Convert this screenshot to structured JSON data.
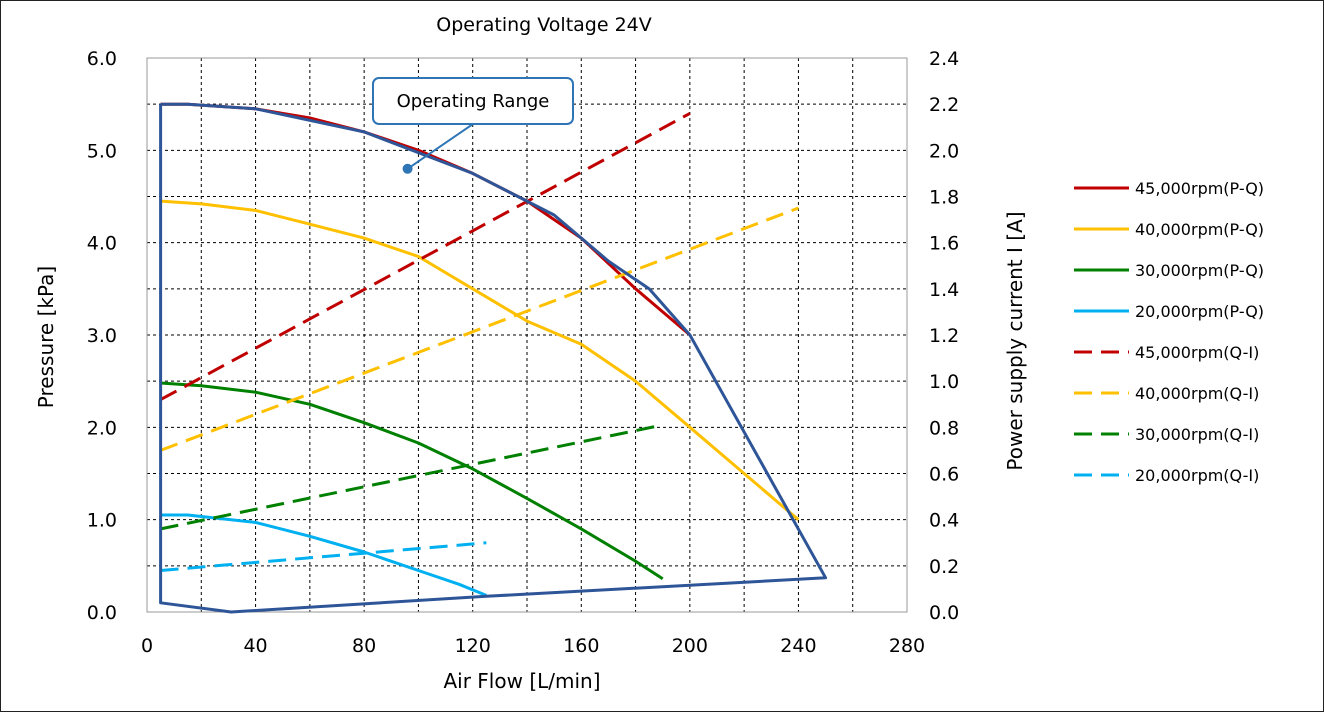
{
  "chart_data": {
    "type": "line",
    "title": "Operating Voltage 24V",
    "xlabel": "Air Flow [L/min]",
    "ylabel": "Pressure  [kPa]",
    "y2label": "Power supply current I [A]",
    "xlim": [
      0,
      280
    ],
    "ylim": [
      0,
      6
    ],
    "y2lim": [
      0,
      2.4
    ],
    "xticks": [
      0,
      40,
      80,
      120,
      160,
      200,
      240,
      280
    ],
    "yticks": [
      0,
      1,
      2,
      3,
      4,
      5,
      6
    ],
    "y2ticks": [
      0,
      0.2,
      0.4,
      0.6,
      0.8,
      1.0,
      1.2,
      1.4,
      1.6,
      1.8,
      2.0,
      2.2,
      2.4
    ],
    "xtick_labels": [
      "0",
      "40",
      "80",
      "120",
      "160",
      "200",
      "240",
      "280"
    ],
    "ytick_labels": [
      "0.0",
      "1.0",
      "2.0",
      "3.0",
      "4.0",
      "5.0",
      "6.0"
    ],
    "y2tick_labels": [
      "0.0",
      "0.2",
      "0.4",
      "0.6",
      "0.8",
      "1.0",
      "1.2",
      "1.4",
      "1.6",
      "1.8",
      "2.0",
      "2.2",
      "2.4"
    ],
    "grid": true,
    "legend_position": "right",
    "annotation": {
      "text": "Operating Range",
      "point": [
        96,
        4.8
      ]
    },
    "boundary": {
      "color": "#2E5597",
      "points": [
        [
          5,
          5.5
        ],
        [
          5,
          0.1
        ],
        [
          31,
          0.0
        ],
        [
          125,
          0.17
        ],
        [
          250,
          0.37
        ],
        [
          200,
          3.0
        ],
        [
          185,
          3.5
        ],
        [
          170,
          3.8
        ],
        [
          150,
          4.3
        ],
        [
          120,
          4.75
        ],
        [
          80,
          5.2
        ],
        [
          40,
          5.45
        ],
        [
          15,
          5.5
        ],
        [
          5,
          5.5
        ]
      ]
    },
    "series": [
      {
        "name": "45,000rpm(P-Q)",
        "color": "#C00000",
        "dash": false,
        "axis": "left",
        "x": [
          5,
          15,
          40,
          60,
          80,
          100,
          120,
          140,
          160,
          180,
          200
        ],
        "y": [
          5.5,
          5.5,
          5.45,
          5.35,
          5.2,
          5.0,
          4.75,
          4.45,
          4.05,
          3.5,
          3.0
        ]
      },
      {
        "name": "40,000rpm(P-Q)",
        "color": "#FFC000",
        "dash": false,
        "axis": "left",
        "x": [
          5,
          20,
          40,
          60,
          80,
          100,
          120,
          140,
          160,
          180,
          200,
          220,
          240
        ],
        "y": [
          4.45,
          4.42,
          4.35,
          4.2,
          4.05,
          3.85,
          3.5,
          3.15,
          2.9,
          2.5,
          2.0,
          1.5,
          1.0
        ]
      },
      {
        "name": "30,000rpm(P-Q)",
        "color": "#008000",
        "dash": false,
        "axis": "left",
        "x": [
          5,
          20,
          40,
          60,
          80,
          100,
          120,
          140,
          160,
          180,
          190
        ],
        "y": [
          2.48,
          2.45,
          2.38,
          2.25,
          2.05,
          1.83,
          1.55,
          1.23,
          0.9,
          0.55,
          0.36
        ]
      },
      {
        "name": "20,000rpm(P-Q)",
        "color": "#00B0F0",
        "dash": false,
        "axis": "left",
        "x": [
          5,
          15,
          40,
          60,
          80,
          100,
          115,
          125
        ],
        "y": [
          1.05,
          1.05,
          0.97,
          0.82,
          0.65,
          0.45,
          0.3,
          0.18
        ]
      },
      {
        "name": "45,000rpm(Q-I)",
        "color": "#C00000",
        "dash": true,
        "axis": "right",
        "x": [
          5,
          200
        ],
        "y": [
          0.92,
          2.16
        ]
      },
      {
        "name": "40,000rpm(Q-I)",
        "color": "#FFC000",
        "dash": true,
        "axis": "right",
        "x": [
          5,
          240
        ],
        "y": [
          0.7,
          1.75
        ]
      },
      {
        "name": "30,000rpm(Q-I)",
        "color": "#008000",
        "dash": true,
        "axis": "right",
        "x": [
          5,
          190
        ],
        "y": [
          0.36,
          0.81
        ]
      },
      {
        "name": "20,000rpm(Q-I)",
        "color": "#00B0F0",
        "dash": true,
        "axis": "right",
        "x": [
          5,
          125
        ],
        "y": [
          0.18,
          0.3
        ]
      }
    ]
  }
}
